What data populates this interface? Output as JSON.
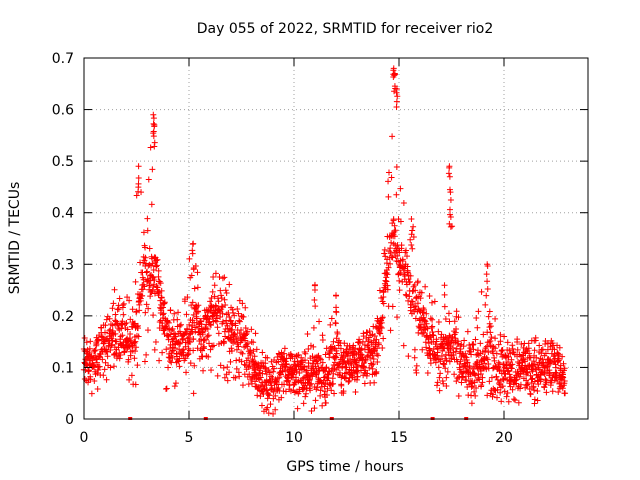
{
  "chart_data": {
    "type": "scatter",
    "title": "Day 055 of 2022, SRMTID for receiver rio2",
    "xlabel": "GPS time / hours",
    "ylabel": "SRMTID / TECUs",
    "xlim": [
      0,
      24
    ],
    "ylim": [
      0,
      0.7
    ],
    "x_ticks": [
      0,
      5,
      10,
      15,
      20
    ],
    "x_tick_labels": [
      "0",
      "5",
      "10",
      "15",
      "20"
    ],
    "y_ticks": [
      0,
      0.1,
      0.2,
      0.3,
      0.4,
      0.5,
      0.6,
      0.7
    ],
    "y_tick_labels": [
      "0",
      "0.1",
      "0.2",
      "0.3",
      "0.4",
      "0.5",
      "0.6",
      "0.7"
    ],
    "grid": true,
    "marker": "plus",
    "color": "#ff0000",
    "x_range_observed": [
      0.0,
      22.9
    ],
    "profile_hours": [
      0,
      0.5,
      1,
      1.5,
      2,
      2.5,
      2.8,
      3,
      3.2,
      3.4,
      3.7,
      4,
      4.5,
      5,
      5.3,
      5.6,
      6,
      6.5,
      7,
      7.5,
      8,
      8.5,
      9,
      9.5,
      10,
      10.5,
      11,
      11.5,
      12,
      12.5,
      13,
      13.5,
      14,
      14.3,
      14.6,
      14.8,
      15,
      15.3,
      15.6,
      16,
      16.5,
      17,
      17.4,
      17.7,
      18,
      18.5,
      19,
      19.3,
      19.6,
      20,
      20.5,
      21,
      21.5,
      22,
      22.5,
      22.9
    ],
    "profile_typical": [
      0.11,
      0.1,
      0.14,
      0.16,
      0.15,
      0.17,
      0.28,
      0.3,
      0.27,
      0.3,
      0.2,
      0.16,
      0.14,
      0.15,
      0.2,
      0.16,
      0.19,
      0.2,
      0.17,
      0.16,
      0.11,
      0.07,
      0.06,
      0.1,
      0.08,
      0.08,
      0.09,
      0.08,
      0.13,
      0.1,
      0.11,
      0.12,
      0.14,
      0.25,
      0.32,
      0.36,
      0.3,
      0.3,
      0.24,
      0.2,
      0.15,
      0.12,
      0.16,
      0.14,
      0.1,
      0.09,
      0.11,
      0.16,
      0.12,
      0.1,
      0.09,
      0.1,
      0.09,
      0.1,
      0.1,
      0.08
    ],
    "profile_peak": [
      0.16,
      0.16,
      0.2,
      0.26,
      0.24,
      0.5,
      0.42,
      0.45,
      0.59,
      0.41,
      0.26,
      0.21,
      0.22,
      0.34,
      0.32,
      0.22,
      0.28,
      0.29,
      0.26,
      0.25,
      0.19,
      0.14,
      0.13,
      0.14,
      0.12,
      0.13,
      0.26,
      0.14,
      0.24,
      0.14,
      0.16,
      0.17,
      0.2,
      0.4,
      0.52,
      0.68,
      0.5,
      0.45,
      0.4,
      0.3,
      0.25,
      0.2,
      0.49,
      0.25,
      0.15,
      0.2,
      0.3,
      0.25,
      0.2,
      0.16,
      0.15,
      0.17,
      0.16,
      0.16,
      0.15,
      0.12
    ],
    "profile_low": [
      0.05,
      0.04,
      0.07,
      0.08,
      0.07,
      0.06,
      0.1,
      0.12,
      0.1,
      0.09,
      0.06,
      0.05,
      0.04,
      0.02,
      0.05,
      0.07,
      0.07,
      0.08,
      0.07,
      0.06,
      0.03,
      0.01,
      0.01,
      0.03,
      0.02,
      0.02,
      0.01,
      0.03,
      0.05,
      0.04,
      0.05,
      0.05,
      0.07,
      0.1,
      0.16,
      0.16,
      0.12,
      0.13,
      0.1,
      0.08,
      0.06,
      0.05,
      0.06,
      0.05,
      0.02,
      0.02,
      0.02,
      0.04,
      0.04,
      0.03,
      0.03,
      0.03,
      0.03,
      0.05,
      0.05,
      0.05
    ],
    "zero_level_marks_hours": [
      2.2,
      5.8,
      11.8,
      16.6,
      18.2
    ]
  }
}
